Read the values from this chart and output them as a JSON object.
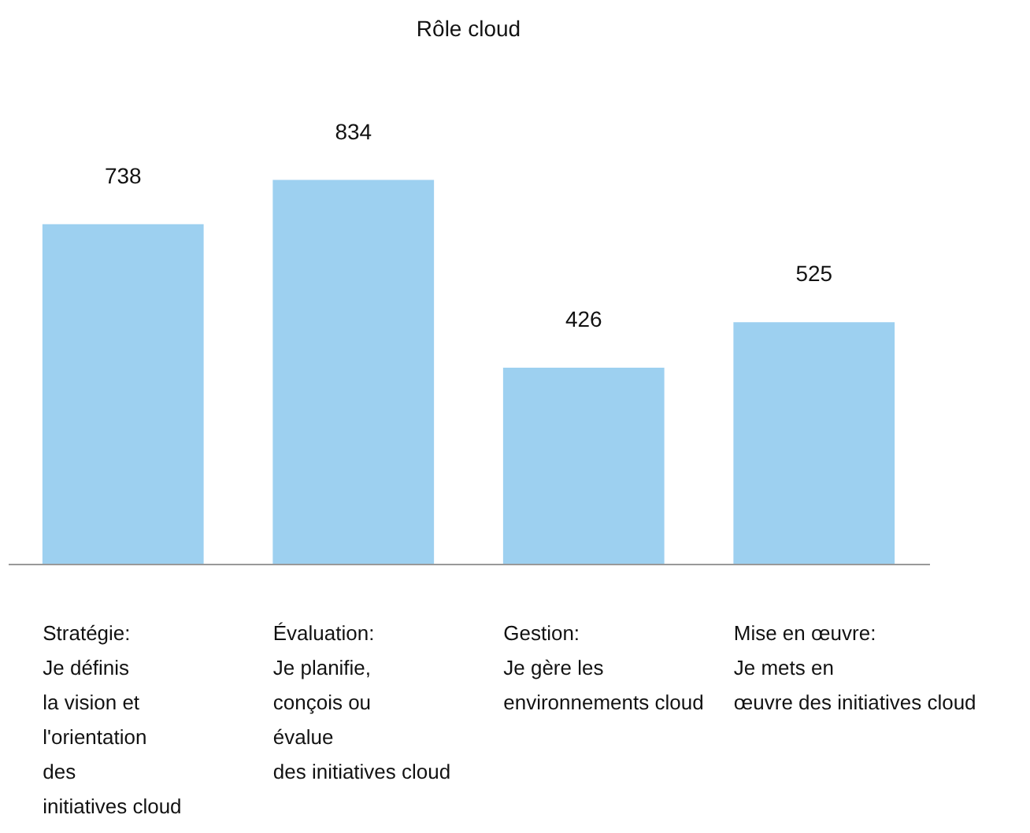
{
  "chart_data": {
    "type": "bar",
    "title": "Rôle cloud",
    "categories": [
      "Stratégie:\nJe définis\nla vision et\nl'orientation\ndes\ninitiatives cloud",
      "Évaluation:\nJe planifie,\nconçois ou\névalue\ndes initiatives cloud",
      "Gestion:\nJe gère les\n\nenvironnements cloud",
      "Mise en œuvre:\nJe mets en\nœuvre des initiatives cloud"
    ],
    "values": [
      738,
      834,
      426,
      525
    ],
    "color": "#9dd0f0",
    "data_labels": true
  }
}
